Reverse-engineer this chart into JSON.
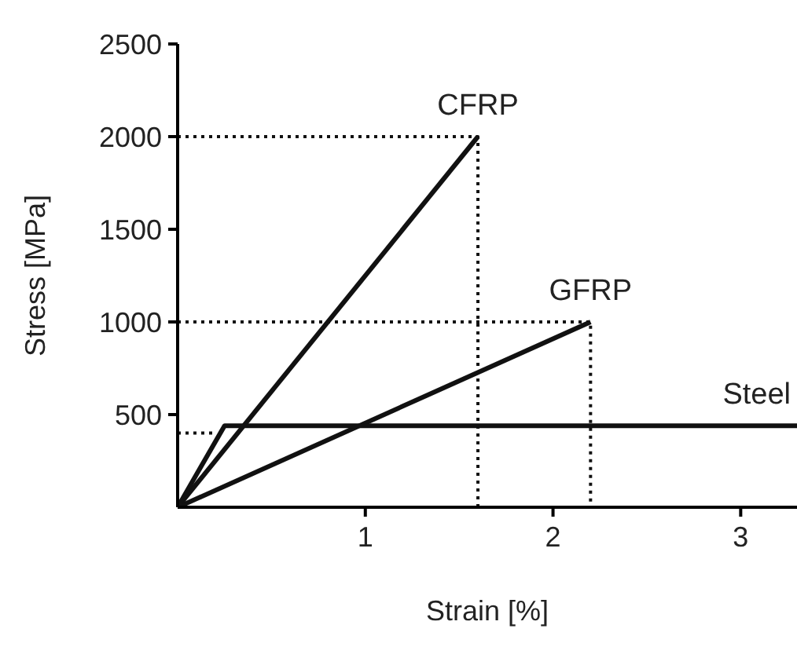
{
  "chart_data": {
    "type": "line",
    "xlabel": "Strain [%]",
    "ylabel": "Stress [MPa]",
    "xlim": [
      0,
      3.3
    ],
    "ylim": [
      0,
      2500
    ],
    "xticks": [
      1,
      2,
      3
    ],
    "yticks": [
      500,
      1000,
      1500,
      2000,
      2500
    ],
    "grid": false,
    "legend": false,
    "marker": "none",
    "series": [
      {
        "name": "CFRP",
        "color": "#111111",
        "x": [
          0,
          1.6
        ],
        "values": [
          0,
          2000
        ],
        "line_style": "solid"
      },
      {
        "name": "GFRP",
        "color": "#111111",
        "x": [
          0,
          2.2
        ],
        "values": [
          0,
          1000
        ],
        "line_style": "solid"
      },
      {
        "name": "Steel",
        "color": "#111111",
        "x": [
          0,
          0.25,
          3.3
        ],
        "values": [
          0,
          440,
          440
        ],
        "line_style": "solid"
      },
      {
        "color": "#111111",
        "x": [
          0,
          1.6,
          1.6
        ],
        "values": [
          2000,
          2000,
          0
        ],
        "line_style": "dotted"
      },
      {
        "color": "#111111",
        "x": [
          0,
          2.2,
          2.2
        ],
        "values": [
          1000,
          1000,
          0
        ],
        "line_style": "dotted"
      },
      {
        "color": "#111111",
        "x": [
          0,
          0.2
        ],
        "values": [
          400,
          400
        ],
        "line_style": "dotted"
      }
    ]
  }
}
